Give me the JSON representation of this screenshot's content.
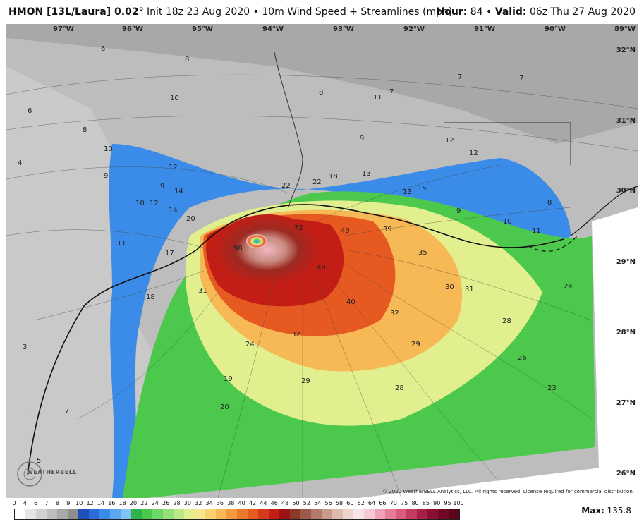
{
  "header": {
    "model": "HMON [13L/Laura] 0.02",
    "degree": "°",
    "init": "Init 18z 23 Aug 2020",
    "separator": "•",
    "field": "10m Wind Speed + Streamlines (mph)",
    "hour_label": "Hour:",
    "hour_value": "84",
    "valid_label": "Valid:",
    "valid_value": "06z Thu 27 Aug 2020"
  },
  "axes": {
    "longitudes": [
      "97°W",
      "96°W",
      "95°W",
      "94°W",
      "93°W",
      "92°W",
      "91°W",
      "90°W",
      "89°W"
    ],
    "latitudes": [
      "32°N",
      "31°N",
      "30°N",
      "29°N",
      "28°N",
      "27°N",
      "26°N"
    ]
  },
  "wind_labels": [
    {
      "v": "98"
    },
    {
      "v": "72"
    },
    {
      "v": "49"
    },
    {
      "v": "48"
    },
    {
      "v": "40"
    },
    {
      "v": "39"
    },
    {
      "v": "35"
    },
    {
      "v": "32"
    },
    {
      "v": "32"
    },
    {
      "v": "31"
    },
    {
      "v": "31"
    },
    {
      "v": "30"
    },
    {
      "v": "29"
    },
    {
      "v": "29"
    },
    {
      "v": "28"
    },
    {
      "v": "28"
    },
    {
      "v": "26"
    },
    {
      "v": "24"
    },
    {
      "v": "24"
    },
    {
      "v": "23"
    },
    {
      "v": "22"
    },
    {
      "v": "22"
    },
    {
      "v": "20"
    },
    {
      "v": "20"
    },
    {
      "v": "19"
    },
    {
      "v": "18"
    },
    {
      "v": "18"
    },
    {
      "v": "17"
    },
    {
      "v": "15"
    },
    {
      "v": "14"
    },
    {
      "v": "14"
    },
    {
      "v": "13"
    },
    {
      "v": "13"
    },
    {
      "v": "12"
    },
    {
      "v": "12"
    },
    {
      "v": "12"
    },
    {
      "v": "12"
    },
    {
      "v": "11"
    },
    {
      "v": "11"
    },
    {
      "v": "11"
    },
    {
      "v": "10"
    },
    {
      "v": "10"
    },
    {
      "v": "10"
    },
    {
      "v": "10"
    },
    {
      "v": "9"
    },
    {
      "v": "9"
    },
    {
      "v": "9"
    },
    {
      "v": "9"
    },
    {
      "v": "8"
    },
    {
      "v": "8"
    },
    {
      "v": "8"
    },
    {
      "v": "8"
    },
    {
      "v": "7"
    },
    {
      "v": "7"
    },
    {
      "v": "7"
    },
    {
      "v": "7"
    },
    {
      "v": "6"
    },
    {
      "v": "6"
    },
    {
      "v": "4"
    },
    {
      "v": "3"
    },
    {
      "v": "5"
    }
  ],
  "legend": {
    "ticks": [
      "0",
      "4",
      "6",
      "7",
      "8",
      "9",
      "10",
      "12",
      "14",
      "16",
      "18",
      "20",
      "22",
      "24",
      "26",
      "28",
      "30",
      "32",
      "34",
      "36",
      "38",
      "40",
      "42",
      "44",
      "46",
      "48",
      "50",
      "52",
      "54",
      "56",
      "58",
      "60",
      "62",
      "64",
      "66",
      "70",
      "75",
      "80",
      "85",
      "90",
      "95",
      "100"
    ],
    "colors": [
      "#ffffff",
      "#e6e6e6",
      "#d2d2d2",
      "#bdbdbd",
      "#a8a8a8",
      "#8e8e8e",
      "#1f4fb8",
      "#2a6bd8",
      "#3b8be8",
      "#5aa8f0",
      "#7fc4f5",
      "#2db34a",
      "#4cc94c",
      "#6dd66d",
      "#96e07a",
      "#bde88a",
      "#e2ef8f",
      "#f6e68f",
      "#f8d271",
      "#f7b955",
      "#f29a3d",
      "#ec7a2d",
      "#e65a22",
      "#d8391b",
      "#c21e16",
      "#9c1313",
      "#8a3a2a",
      "#9b5a4a",
      "#b17a6a",
      "#c79a8c",
      "#dcbab0",
      "#eed6d0",
      "#f8e4e8",
      "#f6c8d4",
      "#efa2b6",
      "#e47c98",
      "#d85a7c",
      "#c43a60",
      "#a82048",
      "#8a1033",
      "#700a24",
      "#5a041a"
    ]
  },
  "max_label": "Max:",
  "max_value": "135.8",
  "copyright": "© 2020 WeatherBELL Analytics, LLC. All rights reserved. License required for commercial distribution.",
  "logo": {
    "text": "WEATHERBELL"
  }
}
